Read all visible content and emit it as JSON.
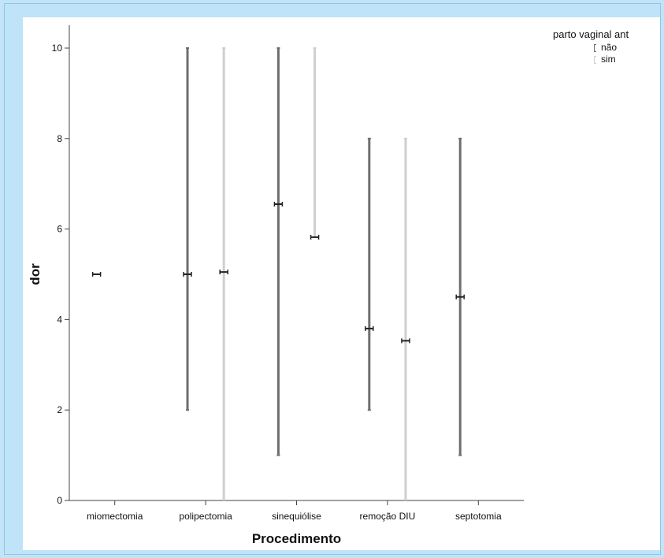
{
  "chart_data": {
    "type": "error-bar",
    "xlabel": "Procedimento",
    "ylabel": "dor",
    "ylim": [
      0,
      10
    ],
    "yticks": [
      0,
      2,
      4,
      6,
      8,
      10
    ],
    "categories": [
      "miomectomia",
      "polipectomia",
      "sinequiólise",
      "remoção DIU",
      "septotomia"
    ],
    "legend": {
      "title": "parto vaginal ant",
      "position": "top-right"
    },
    "grid": false,
    "series": [
      {
        "name": "não",
        "color": "#6e6e6e",
        "mean": [
          5.0,
          5.0,
          6.55,
          3.8,
          4.5
        ],
        "lower": [
          null,
          2.0,
          1.0,
          2.0,
          1.0
        ],
        "upper": [
          null,
          10.0,
          10.0,
          8.0,
          8.0
        ]
      },
      {
        "name": "sim",
        "color": "#cfcfcf",
        "mean": [
          null,
          5.05,
          5.82,
          3.53,
          null
        ],
        "lower": [
          null,
          0.0,
          null,
          0.0,
          null
        ],
        "upper": [
          null,
          10.0,
          10.0,
          8.0,
          null
        ]
      }
    ]
  }
}
